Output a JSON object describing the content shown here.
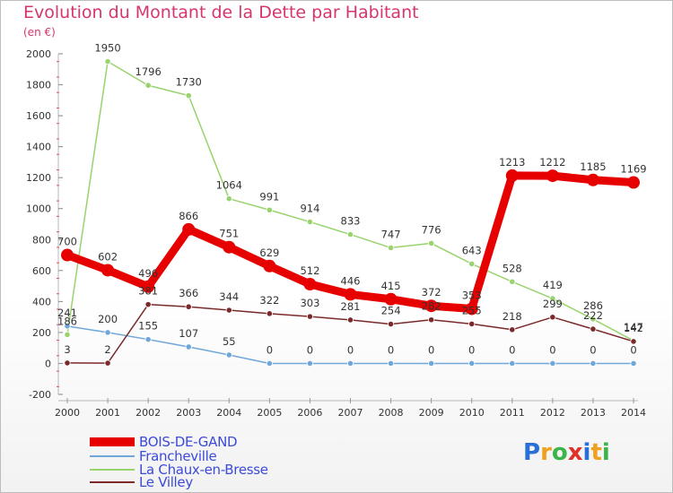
{
  "title": "Evolution du Montant de la Dette par Habitant",
  "unit": "(en €)",
  "logo": {
    "text": "Proxiti",
    "colors": [
      "#2a6fd6",
      "#f0a020",
      "#3ab54a",
      "#e0302a",
      "#2a6fd6",
      "#f0a020",
      "#3ab54a"
    ]
  },
  "chart_data": {
    "type": "line",
    "title": "Evolution du Montant de la Dette par Habitant",
    "ylabel": "(en €)",
    "x": [
      "2000",
      "2001",
      "2002",
      "2003",
      "2004",
      "2005",
      "2006",
      "2007",
      "2008",
      "2009",
      "2010",
      "2011",
      "2012",
      "2013",
      "2014"
    ],
    "ylim": [
      -200,
      2000
    ],
    "yticks": [
      -200,
      0,
      200,
      400,
      600,
      800,
      1000,
      1200,
      1400,
      1600,
      1800,
      2000
    ],
    "grid": false,
    "legend_position": "bottom",
    "series": [
      {
        "name": "BOIS-DE-GAND",
        "color": "#e60000",
        "values": [
          700,
          602,
          496,
          866,
          751,
          629,
          512,
          446,
          415,
          372,
          353,
          1213,
          1212,
          1185,
          1169
        ]
      },
      {
        "name": "Francheville",
        "color": "#6fa7d8",
        "values": [
          241,
          200,
          155,
          107,
          55,
          0,
          0,
          0,
          0,
          0,
          0,
          0,
          0,
          0,
          0
        ]
      },
      {
        "name": "La Chaux-en-Bresse",
        "color": "#99d36e",
        "values": [
          186,
          1950,
          1796,
          1730,
          1064,
          991,
          914,
          833,
          747,
          776,
          643,
          528,
          419,
          286,
          147
        ]
      },
      {
        "name": "Le Villey",
        "color": "#7a2a2a",
        "values": [
          3,
          2,
          381,
          366,
          344,
          322,
          303,
          281,
          254,
          282,
          255,
          218,
          299,
          222,
          142
        ]
      }
    ]
  }
}
